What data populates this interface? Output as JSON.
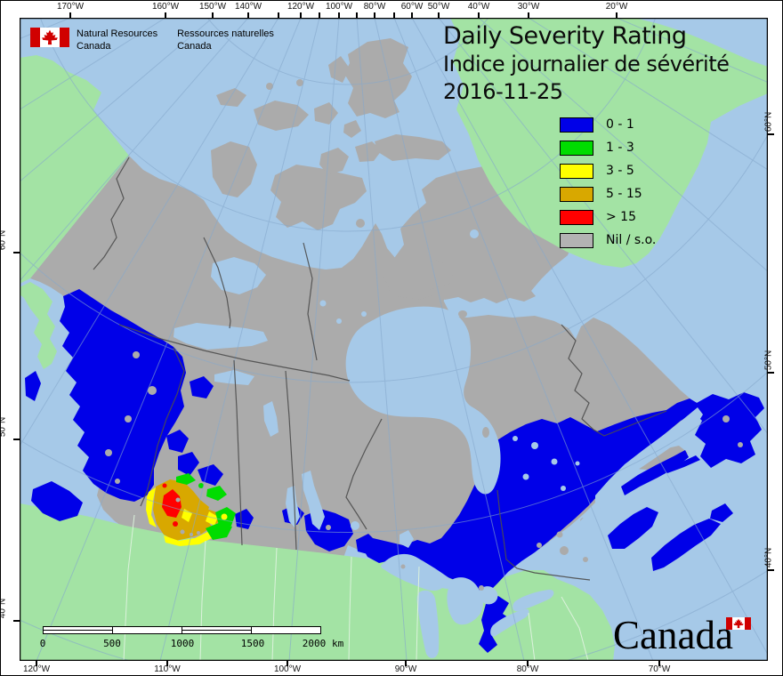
{
  "signature": {
    "en_line1": "Natural Resources",
    "en_line2": "Canada",
    "fr_line1": "Ressources naturelles",
    "fr_line2": "Canada"
  },
  "title": {
    "en": "Daily Severity Rating",
    "fr": "Indice journalier de sévérité",
    "date": "2016-11-25"
  },
  "legend": {
    "items": [
      {
        "label": "0 - 1",
        "color": "#0000E8"
      },
      {
        "label": "1 - 3",
        "color": "#00DC00"
      },
      {
        "label": "3 - 5",
        "color": "#FFFF00"
      },
      {
        "label": "5 - 15",
        "color": "#D8A800"
      },
      {
        "label": "> 15",
        "color": "#FF0000"
      },
      {
        "label": "Nil / s.o.",
        "color": "#B3B3B3"
      }
    ]
  },
  "scalebar": {
    "ticks": [
      "0",
      "500",
      "1000",
      "1500",
      "2000"
    ],
    "unit": "km"
  },
  "wordmark": {
    "text": "Canada"
  },
  "axes": {
    "top": [
      "170°W",
      "160°W",
      "150°W",
      "140°W",
      "120°W",
      "100°W",
      "80°W",
      "60°W",
      "50°W",
      "40°W",
      "30°W",
      "20°W"
    ],
    "bottom": [
      "120°W",
      "110°W",
      "100°W",
      "90°W",
      "80°W",
      "70°W"
    ],
    "left": [
      "60°N",
      "50°N",
      "40°N"
    ],
    "right": [
      "60°N",
      "50°N",
      "40°N"
    ]
  },
  "colors": {
    "water": "#A6C9E8",
    "foreign_land": "#A3E3A4",
    "nil_land": "#ABABAB",
    "dsr_blue": "#0000E8",
    "dsr_green": "#00DC00",
    "dsr_yellow": "#FFFF00",
    "dsr_orange": "#D8A800",
    "dsr_red": "#FF0000",
    "graticule": "#85A8CC",
    "border": "#4D4D4D"
  }
}
